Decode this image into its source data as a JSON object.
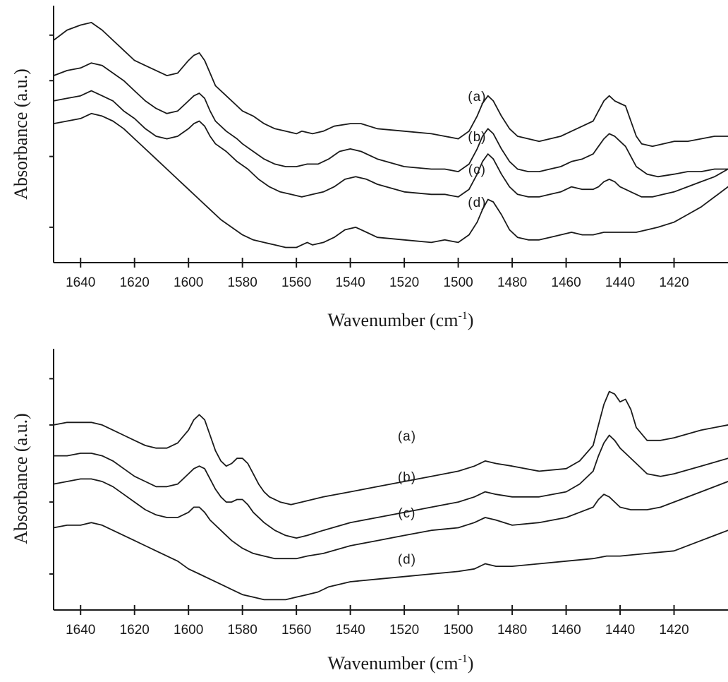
{
  "chart_data": [
    {
      "type": "line",
      "xlabel": "Wavenumber (cm-1)",
      "xlabel_main": "Wavenumber (cm",
      "xlabel_sup": "-1",
      "xlabel_close": ")",
      "ylabel": "Absorbance (a.u.)",
      "xlim": [
        1650,
        1400
      ],
      "x_reversed": true,
      "y_units": "arbitrary",
      "grid": false,
      "xticks": [
        1640,
        1620,
        1600,
        1580,
        1560,
        1540,
        1520,
        1500,
        1480,
        1460,
        1440,
        1420
      ],
      "series": [
        {
          "name": "(a)",
          "label_x": 1493,
          "label_y": 0.64,
          "x": [
            1650,
            1645,
            1640,
            1636,
            1632,
            1628,
            1624,
            1620,
            1616,
            1612,
            1608,
            1604,
            1600,
            1598,
            1596,
            1594,
            1592,
            1590,
            1586,
            1582,
            1580,
            1576,
            1572,
            1568,
            1564,
            1560,
            1558,
            1554,
            1550,
            1546,
            1540,
            1536,
            1530,
            1520,
            1510,
            1505,
            1500,
            1496,
            1493,
            1491,
            1489,
            1487,
            1484,
            1481,
            1478,
            1474,
            1470,
            1466,
            1462,
            1458,
            1454,
            1450,
            1448,
            1446,
            1444,
            1442,
            1440,
            1438,
            1436,
            1434,
            1432,
            1428,
            1424,
            1420,
            1415,
            1410,
            1405,
            1400
          ],
          "y": [
            0.88,
            0.92,
            0.94,
            0.95,
            0.92,
            0.88,
            0.84,
            0.8,
            0.78,
            0.76,
            0.74,
            0.75,
            0.8,
            0.82,
            0.83,
            0.8,
            0.75,
            0.7,
            0.66,
            0.62,
            0.6,
            0.58,
            0.55,
            0.53,
            0.52,
            0.51,
            0.52,
            0.51,
            0.52,
            0.54,
            0.55,
            0.55,
            0.53,
            0.52,
            0.51,
            0.5,
            0.49,
            0.52,
            0.58,
            0.63,
            0.66,
            0.64,
            0.58,
            0.53,
            0.5,
            0.49,
            0.48,
            0.49,
            0.5,
            0.52,
            0.54,
            0.56,
            0.6,
            0.64,
            0.66,
            0.64,
            0.63,
            0.62,
            0.56,
            0.5,
            0.47,
            0.46,
            0.47,
            0.48,
            0.48,
            0.49,
            0.5,
            0.5
          ]
        },
        {
          "name": "(b)",
          "label_x": 1493,
          "label_y": 0.48,
          "x": [
            1650,
            1645,
            1640,
            1636,
            1632,
            1628,
            1624,
            1620,
            1616,
            1612,
            1608,
            1604,
            1600,
            1598,
            1596,
            1594,
            1592,
            1590,
            1586,
            1582,
            1580,
            1576,
            1572,
            1568,
            1564,
            1560,
            1556,
            1552,
            1548,
            1544,
            1540,
            1536,
            1530,
            1520,
            1510,
            1505,
            1500,
            1496,
            1493,
            1491,
            1489,
            1487,
            1484,
            1481,
            1478,
            1474,
            1470,
            1466,
            1462,
            1458,
            1454,
            1450,
            1448,
            1446,
            1444,
            1442,
            1440,
            1438,
            1436,
            1434,
            1430,
            1426,
            1420,
            1415,
            1410,
            1405,
            1400
          ],
          "y": [
            0.74,
            0.76,
            0.77,
            0.79,
            0.78,
            0.75,
            0.72,
            0.68,
            0.64,
            0.61,
            0.59,
            0.6,
            0.64,
            0.66,
            0.67,
            0.65,
            0.6,
            0.56,
            0.52,
            0.49,
            0.47,
            0.44,
            0.41,
            0.39,
            0.38,
            0.38,
            0.39,
            0.39,
            0.41,
            0.44,
            0.45,
            0.44,
            0.41,
            0.38,
            0.37,
            0.37,
            0.36,
            0.39,
            0.45,
            0.5,
            0.53,
            0.51,
            0.45,
            0.4,
            0.37,
            0.36,
            0.36,
            0.37,
            0.38,
            0.4,
            0.41,
            0.43,
            0.46,
            0.49,
            0.51,
            0.5,
            0.48,
            0.46,
            0.42,
            0.38,
            0.35,
            0.34,
            0.35,
            0.36,
            0.36,
            0.37,
            0.37
          ]
        },
        {
          "name": "(c)",
          "label_x": 1493,
          "label_y": 0.35,
          "x": [
            1650,
            1645,
            1640,
            1636,
            1632,
            1628,
            1624,
            1620,
            1616,
            1612,
            1608,
            1604,
            1600,
            1598,
            1596,
            1594,
            1592,
            1590,
            1586,
            1582,
            1578,
            1574,
            1570,
            1566,
            1562,
            1558,
            1554,
            1550,
            1546,
            1542,
            1538,
            1534,
            1530,
            1520,
            1510,
            1505,
            1500,
            1496,
            1493,
            1491,
            1489,
            1487,
            1484,
            1481,
            1478,
            1474,
            1470,
            1466,
            1462,
            1458,
            1454,
            1450,
            1448,
            1446,
            1444,
            1442,
            1440,
            1436,
            1432,
            1428,
            1424,
            1420,
            1415,
            1410,
            1405,
            1400
          ],
          "y": [
            0.64,
            0.65,
            0.66,
            0.68,
            0.66,
            0.64,
            0.6,
            0.57,
            0.53,
            0.5,
            0.49,
            0.5,
            0.53,
            0.55,
            0.56,
            0.54,
            0.5,
            0.47,
            0.44,
            0.4,
            0.37,
            0.33,
            0.3,
            0.28,
            0.27,
            0.26,
            0.27,
            0.28,
            0.3,
            0.33,
            0.34,
            0.33,
            0.31,
            0.28,
            0.27,
            0.27,
            0.26,
            0.29,
            0.35,
            0.4,
            0.43,
            0.41,
            0.35,
            0.3,
            0.27,
            0.26,
            0.26,
            0.27,
            0.28,
            0.3,
            0.29,
            0.29,
            0.3,
            0.32,
            0.33,
            0.32,
            0.3,
            0.28,
            0.26,
            0.26,
            0.27,
            0.28,
            0.3,
            0.32,
            0.34,
            0.37
          ]
        },
        {
          "name": "(d)",
          "label_x": 1493,
          "label_y": 0.22,
          "x": [
            1650,
            1645,
            1640,
            1636,
            1632,
            1628,
            1624,
            1620,
            1616,
            1612,
            1608,
            1604,
            1600,
            1596,
            1592,
            1588,
            1584,
            1580,
            1576,
            1572,
            1568,
            1564,
            1560,
            1558,
            1556,
            1554,
            1550,
            1546,
            1542,
            1538,
            1534,
            1530,
            1520,
            1510,
            1505,
            1500,
            1496,
            1493,
            1491,
            1489,
            1487,
            1484,
            1481,
            1478,
            1474,
            1470,
            1466,
            1462,
            1458,
            1454,
            1450,
            1446,
            1442,
            1438,
            1434,
            1430,
            1426,
            1420,
            1415,
            1410,
            1405,
            1400
          ],
          "y": [
            0.55,
            0.56,
            0.57,
            0.59,
            0.58,
            0.56,
            0.53,
            0.49,
            0.45,
            0.41,
            0.37,
            0.33,
            0.29,
            0.25,
            0.21,
            0.17,
            0.14,
            0.11,
            0.09,
            0.08,
            0.07,
            0.06,
            0.06,
            0.07,
            0.08,
            0.07,
            0.08,
            0.1,
            0.13,
            0.14,
            0.12,
            0.1,
            0.09,
            0.08,
            0.09,
            0.08,
            0.11,
            0.16,
            0.21,
            0.25,
            0.24,
            0.19,
            0.13,
            0.1,
            0.09,
            0.09,
            0.1,
            0.11,
            0.12,
            0.11,
            0.11,
            0.12,
            0.12,
            0.12,
            0.12,
            0.13,
            0.14,
            0.16,
            0.19,
            0.22,
            0.26,
            0.3
          ]
        }
      ]
    },
    {
      "type": "line",
      "xlabel": "Wavenumber (cm-1)",
      "xlabel_main": "Wavenumber (cm",
      "xlabel_sup": "-1",
      "xlabel_close": ")",
      "ylabel": "Absorbance (a.u.)",
      "xlim": [
        1650,
        1400
      ],
      "x_reversed": true,
      "y_units": "arbitrary",
      "grid": false,
      "xticks": [
        1640,
        1620,
        1600,
        1580,
        1560,
        1540,
        1520,
        1500,
        1480,
        1460,
        1440,
        1420
      ],
      "series": [
        {
          "name": "(a)",
          "label_x": 1519,
          "label_y": 0.66,
          "x": [
            1650,
            1645,
            1640,
            1636,
            1632,
            1628,
            1624,
            1620,
            1616,
            1612,
            1608,
            1604,
            1600,
            1598,
            1596,
            1594,
            1592,
            1590,
            1588,
            1586,
            1584,
            1582,
            1580,
            1578,
            1576,
            1574,
            1572,
            1570,
            1566,
            1562,
            1558,
            1550,
            1540,
            1530,
            1520,
            1510,
            1500,
            1494,
            1490,
            1486,
            1480,
            1470,
            1460,
            1455,
            1450,
            1448,
            1446,
            1444,
            1442,
            1440,
            1438,
            1436,
            1434,
            1430,
            1425,
            1420,
            1410,
            1400
          ],
          "y": [
            0.72,
            0.73,
            0.73,
            0.73,
            0.72,
            0.7,
            0.68,
            0.66,
            0.64,
            0.63,
            0.63,
            0.65,
            0.7,
            0.74,
            0.76,
            0.74,
            0.68,
            0.62,
            0.58,
            0.56,
            0.57,
            0.59,
            0.59,
            0.57,
            0.53,
            0.49,
            0.46,
            0.44,
            0.42,
            0.41,
            0.42,
            0.44,
            0.46,
            0.48,
            0.5,
            0.52,
            0.54,
            0.56,
            0.58,
            0.57,
            0.56,
            0.54,
            0.55,
            0.58,
            0.64,
            0.72,
            0.8,
            0.85,
            0.84,
            0.81,
            0.82,
            0.78,
            0.71,
            0.66,
            0.66,
            0.67,
            0.7,
            0.72
          ]
        },
        {
          "name": "(b)",
          "label_x": 1519,
          "label_y": 0.5,
          "x": [
            1650,
            1645,
            1640,
            1636,
            1632,
            1628,
            1624,
            1620,
            1616,
            1612,
            1608,
            1604,
            1600,
            1598,
            1596,
            1594,
            1592,
            1590,
            1588,
            1586,
            1584,
            1582,
            1580,
            1578,
            1576,
            1572,
            1568,
            1564,
            1560,
            1556,
            1550,
            1540,
            1530,
            1520,
            1510,
            1500,
            1494,
            1490,
            1486,
            1480,
            1470,
            1460,
            1455,
            1450,
            1448,
            1446,
            1444,
            1442,
            1440,
            1438,
            1434,
            1430,
            1425,
            1420,
            1410,
            1400
          ],
          "y": [
            0.6,
            0.6,
            0.61,
            0.61,
            0.6,
            0.58,
            0.55,
            0.52,
            0.5,
            0.48,
            0.48,
            0.49,
            0.53,
            0.55,
            0.56,
            0.55,
            0.51,
            0.47,
            0.44,
            0.42,
            0.42,
            0.43,
            0.43,
            0.41,
            0.38,
            0.34,
            0.31,
            0.29,
            0.28,
            0.29,
            0.31,
            0.34,
            0.36,
            0.38,
            0.4,
            0.42,
            0.44,
            0.46,
            0.45,
            0.44,
            0.44,
            0.46,
            0.49,
            0.54,
            0.6,
            0.65,
            0.68,
            0.66,
            0.63,
            0.61,
            0.57,
            0.53,
            0.52,
            0.53,
            0.56,
            0.59
          ]
        },
        {
          "name": "(c)",
          "label_x": 1519,
          "label_y": 0.36,
          "x": [
            1650,
            1645,
            1640,
            1636,
            1632,
            1628,
            1624,
            1620,
            1616,
            1612,
            1608,
            1604,
            1600,
            1598,
            1596,
            1594,
            1592,
            1588,
            1584,
            1580,
            1576,
            1572,
            1568,
            1564,
            1560,
            1556,
            1550,
            1540,
            1530,
            1520,
            1510,
            1500,
            1494,
            1490,
            1486,
            1480,
            1470,
            1460,
            1455,
            1450,
            1448,
            1446,
            1444,
            1442,
            1440,
            1436,
            1430,
            1425,
            1420,
            1410,
            1400
          ],
          "y": [
            0.49,
            0.5,
            0.51,
            0.51,
            0.5,
            0.48,
            0.45,
            0.42,
            0.39,
            0.37,
            0.36,
            0.36,
            0.38,
            0.4,
            0.4,
            0.38,
            0.35,
            0.31,
            0.27,
            0.24,
            0.22,
            0.21,
            0.2,
            0.2,
            0.2,
            0.21,
            0.22,
            0.25,
            0.27,
            0.29,
            0.31,
            0.32,
            0.34,
            0.36,
            0.35,
            0.33,
            0.34,
            0.36,
            0.38,
            0.4,
            0.43,
            0.45,
            0.44,
            0.42,
            0.4,
            0.39,
            0.39,
            0.4,
            0.42,
            0.46,
            0.5
          ]
        },
        {
          "name": "(d)",
          "label_x": 1519,
          "label_y": 0.18,
          "x": [
            1650,
            1645,
            1640,
            1636,
            1632,
            1628,
            1624,
            1620,
            1616,
            1612,
            1608,
            1604,
            1600,
            1596,
            1592,
            1588,
            1584,
            1580,
            1576,
            1572,
            1568,
            1564,
            1560,
            1556,
            1552,
            1548,
            1544,
            1540,
            1530,
            1520,
            1510,
            1500,
            1494,
            1490,
            1486,
            1480,
            1470,
            1460,
            1450,
            1445,
            1440,
            1430,
            1420,
            1410,
            1400
          ],
          "y": [
            0.32,
            0.33,
            0.33,
            0.34,
            0.33,
            0.31,
            0.29,
            0.27,
            0.25,
            0.23,
            0.21,
            0.19,
            0.16,
            0.14,
            0.12,
            0.1,
            0.08,
            0.06,
            0.05,
            0.04,
            0.04,
            0.04,
            0.05,
            0.06,
            0.07,
            0.09,
            0.1,
            0.11,
            0.12,
            0.13,
            0.14,
            0.15,
            0.16,
            0.18,
            0.17,
            0.17,
            0.18,
            0.19,
            0.2,
            0.21,
            0.21,
            0.22,
            0.23,
            0.27,
            0.31
          ]
        }
      ]
    }
  ]
}
